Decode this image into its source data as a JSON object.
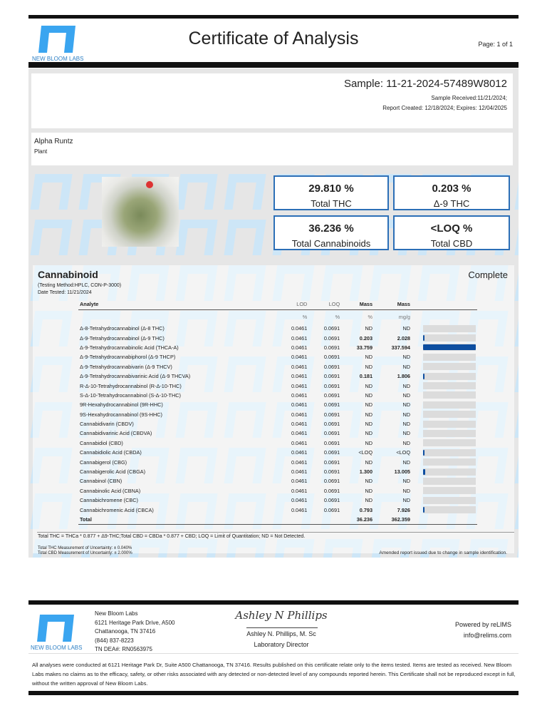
{
  "header": {
    "logo_text": "NEW BLOOM LABS",
    "title": "Certificate of Analysis",
    "page": "Page: 1 of 1"
  },
  "sample": {
    "id": "Sample: 11-21-2024-57489W8012",
    "received": "Sample Received:11/21/2024;",
    "created": "Report Created: 12/18/2024; Expires: 12/04/2025"
  },
  "product": {
    "name": "Alpha Runtz",
    "type": "Plant"
  },
  "summary": [
    {
      "value": "29.810 %",
      "label": "Total THC"
    },
    {
      "value": "0.203 %",
      "label": "Δ-9 THC"
    },
    {
      "value": "36.236 %",
      "label": "Total Cannabinoids"
    },
    {
      "value": "<LOQ %",
      "label": "Total CBD"
    }
  ],
  "cannabinoid": {
    "title": "Cannabinoid",
    "status": "Complete",
    "method": "(Testing Method:HPLC, CON-P-3000)",
    "date": "Date Tested: 11/21/2024",
    "headers": [
      "Analyte",
      "LOD",
      "LOQ",
      "Mass",
      "Mass"
    ],
    "units": [
      "",
      "%",
      "%",
      "%",
      "mg/g"
    ],
    "rows": [
      {
        "analyte": "Δ-8-Tetrahydrocannabinol (Δ-8 THC)",
        "lod": "0.0461",
        "loq": "0.0691",
        "pct": "ND",
        "mg": "ND",
        "bar": 0
      },
      {
        "analyte": "Δ-9-Tetrahydrocannabinol (Δ-9 THC)",
        "lod": "0.0461",
        "loq": "0.0691",
        "pct": "0.203",
        "mg": "2.028",
        "bar": 0.006
      },
      {
        "analyte": "Δ-9-Tetrahydrocannabinolic Acid (THCA-A)",
        "lod": "0.0461",
        "loq": "0.0691",
        "pct": "33.759",
        "mg": "337.594",
        "bar": 1
      },
      {
        "analyte": "Δ-9-Tetrahydrocannabiphorol (Δ-9 THCP)",
        "lod": "0.0461",
        "loq": "0.0691",
        "pct": "ND",
        "mg": "ND",
        "bar": 0
      },
      {
        "analyte": "Δ-9-Tetrahydrocannabivarin (Δ-9 THCV)",
        "lod": "0.0461",
        "loq": "0.0691",
        "pct": "ND",
        "mg": "ND",
        "bar": 0
      },
      {
        "analyte": "Δ-9-Tetrahydrocannabivarinic Acid (Δ-9 THCVA)",
        "lod": "0.0461",
        "loq": "0.0691",
        "pct": "0.181",
        "mg": "1.806",
        "bar": 0.005
      },
      {
        "analyte": "R-Δ-10-Tetrahydrocannabinol (R-Δ-10-THC)",
        "lod": "0.0461",
        "loq": "0.0691",
        "pct": "ND",
        "mg": "ND",
        "bar": 0
      },
      {
        "analyte": "S-Δ-10-Tetrahydrocannabinol (S-Δ-10-THC)",
        "lod": "0.0461",
        "loq": "0.0691",
        "pct": "ND",
        "mg": "ND",
        "bar": 0
      },
      {
        "analyte": "9R-Hexahydrocannabinol (9R-HHC)",
        "lod": "0.0461",
        "loq": "0.0691",
        "pct": "ND",
        "mg": "ND",
        "bar": 0
      },
      {
        "analyte": "9S-Hexahydrocannabinol (9S-HHC)",
        "lod": "0.0461",
        "loq": "0.0691",
        "pct": "ND",
        "mg": "ND",
        "bar": 0
      },
      {
        "analyte": "Cannabidivarin (CBDV)",
        "lod": "0.0461",
        "loq": "0.0691",
        "pct": "ND",
        "mg": "ND",
        "bar": 0
      },
      {
        "analyte": "Cannabidivarinic Acid (CBDVA)",
        "lod": "0.0461",
        "loq": "0.0691",
        "pct": "ND",
        "mg": "ND",
        "bar": 0
      },
      {
        "analyte": "Cannabidiol (CBD)",
        "lod": "0.0461",
        "loq": "0.0691",
        "pct": "ND",
        "mg": "ND",
        "bar": 0
      },
      {
        "analyte": "Cannabidiolic Acid (CBDA)",
        "lod": "0.0461",
        "loq": "0.0691",
        "pct": "<LOQ",
        "mg": "<LOQ",
        "bar": 0.002
      },
      {
        "analyte": "Cannabigerol (CBG)",
        "lod": "0.0461",
        "loq": "0.0691",
        "pct": "ND",
        "mg": "ND",
        "bar": 0
      },
      {
        "analyte": "Cannabigerolic Acid (CBGA)",
        "lod": "0.0461",
        "loq": "0.0691",
        "pct": "1.300",
        "mg": "13.005",
        "bar": 0.039
      },
      {
        "analyte": "Cannabinol (CBN)",
        "lod": "0.0461",
        "loq": "0.0691",
        "pct": "ND",
        "mg": "ND",
        "bar": 0
      },
      {
        "analyte": "Cannabinolic Acid (CBNA)",
        "lod": "0.0461",
        "loq": "0.0691",
        "pct": "ND",
        "mg": "ND",
        "bar": 0
      },
      {
        "analyte": "Cannabichromene (CBC)",
        "lod": "0.0461",
        "loq": "0.0691",
        "pct": "ND",
        "mg": "ND",
        "bar": 0
      },
      {
        "analyte": "Cannabichromenic Acid (CBCA)",
        "lod": "0.0461",
        "loq": "0.0691",
        "pct": "0.793",
        "mg": "7.926",
        "bar": 0.023
      }
    ],
    "total": {
      "label": "Total",
      "pct": "36.236",
      "mg": "362.359"
    },
    "formula": "Total THC = THCa * 0.877 + Δ9-THC;Total CBD = CBDa * 0.877 + CBD; LOQ = Limit of Quantitation; ND = Not Detected.",
    "uncertainty_thc": "Total THC Measurement of Uncertainty: ± 0.040%",
    "uncertainty_cbd": "Total CBD Measurement of Uncertainty: ± 2.000%",
    "amended": "Amended report issued due to change in sample identification."
  },
  "footer": {
    "logo_text": "NEW BLOOM LABS",
    "address": [
      "New Bloom Labs",
      "6121 Heritage Park Drive, A500",
      "Chattanooga, TN 37416",
      "(844) 837-8223",
      "TN DEA#: RN0563975"
    ],
    "signature": "Ashley N Phillips",
    "signer": "Ashley N. Phillips, M. Sc",
    "signer_title": "Laboratory Director",
    "powered": "Powered by reLIMS",
    "email": "info@relims.com",
    "disclaimer": "All analyses were conducted at 6121 Heritage Park Dr, Suite A500 Chattanooga, TN 37416. Results published on this certificate relate only to the items tested. Items are tested as received. New Bloom Labs makes no claims as to the efficacy, safety, or other risks associated with any detected or non-detected level of any compounds reported herein. This Certificate shall not be reproduced except in full, without the written approval of New Bloom Labs."
  },
  "colors": {
    "accent": "#2c6fb7",
    "bar": "#0d4ea0",
    "logo": "#3aa5f0"
  }
}
